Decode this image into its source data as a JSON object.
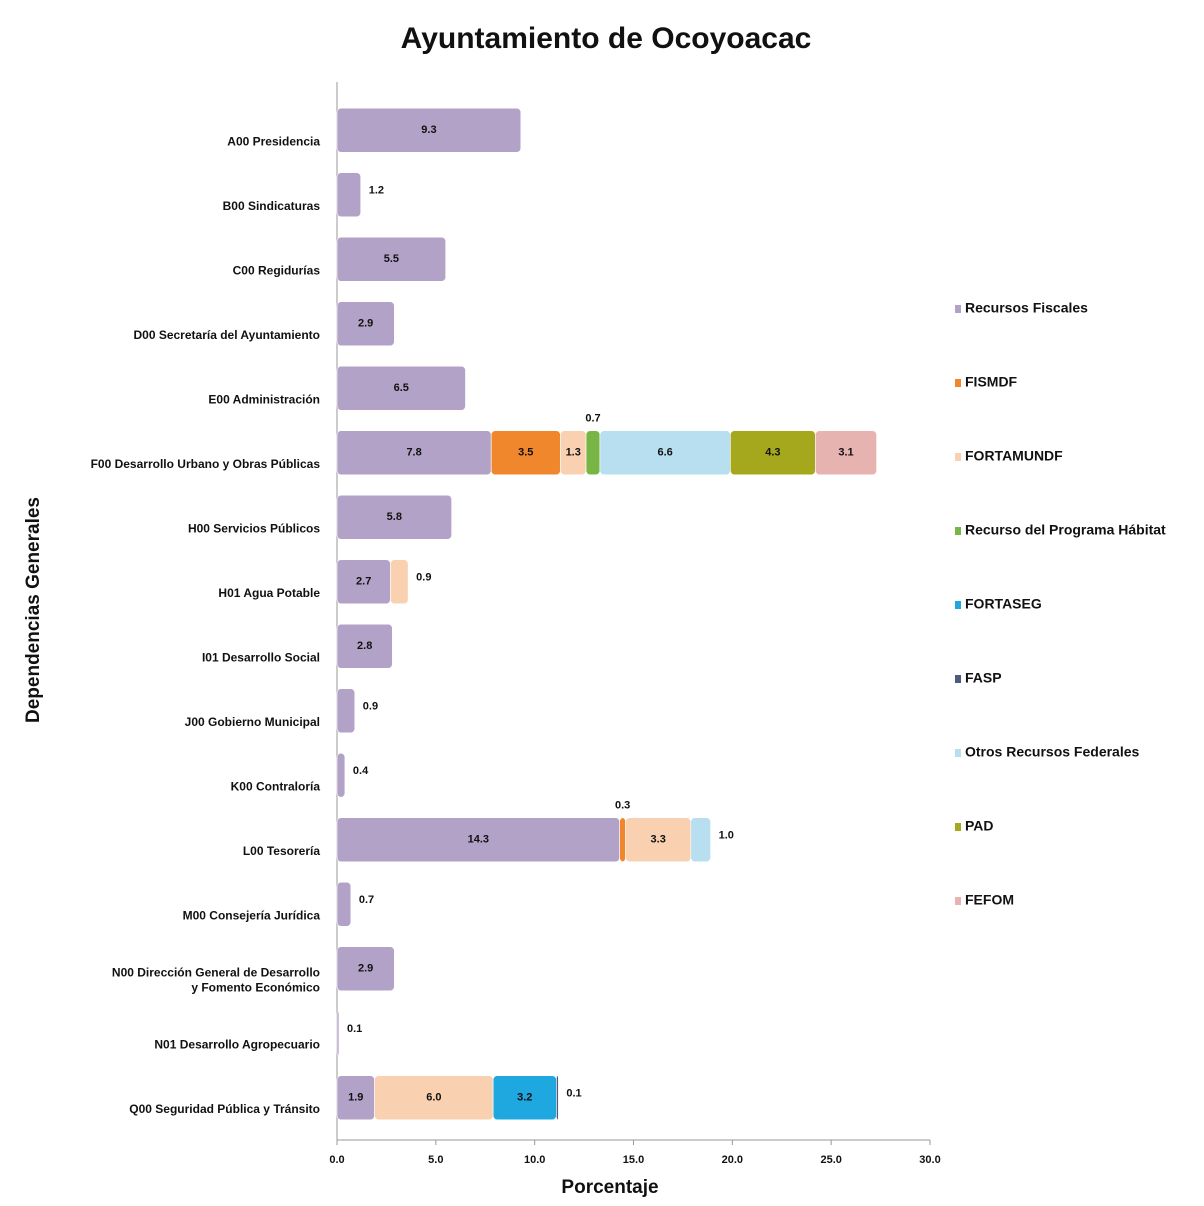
{
  "chart_data": {
    "type": "stacked-bar-horizontal",
    "title": "Ayuntamiento de Ocoyoacac",
    "x_label": "Porcentaje",
    "y_label": "Dependencias Generales",
    "categories": [
      "A00 Presidencia",
      "B00 Sindicaturas",
      "C00 Regidurías",
      "D00 Secretaría del Ayuntamiento",
      "E00 Administración",
      "F00 Desarrollo Urbano y Obras Públicas",
      "H00 Servicios Públicos",
      "H01 Agua Potable",
      "I01 Desarrollo Social",
      "J00 Gobierno Municipal",
      "K00 Contraloría",
      "L00 Tesorería",
      "M00 Consejería Jurídica",
      "N00 Dirección General de Desarrollo\ny Fomento Económico",
      "N01 Desarrollo Agropecuario",
      "Q00 Seguridad Pública y Tránsito"
    ],
    "series": [
      {
        "name": "Recursos Fiscales",
        "color": "#b3a2c7",
        "values": [
          9.3,
          1.2,
          5.5,
          2.9,
          6.5,
          7.8,
          5.8,
          2.7,
          2.8,
          0.9,
          0.4,
          14.3,
          0.7,
          2.9,
          0.1,
          1.9
        ]
      },
      {
        "name": "FISMDF",
        "color": "#f0872d",
        "values": [
          null,
          null,
          null,
          null,
          null,
          3.5,
          null,
          null,
          null,
          null,
          null,
          0.3,
          null,
          null,
          null,
          null
        ]
      },
      {
        "name": "FORTAMUNDF",
        "color": "#f9d1b0",
        "values": [
          null,
          null,
          null,
          null,
          null,
          1.3,
          null,
          0.9,
          null,
          null,
          null,
          3.3,
          null,
          null,
          null,
          6
        ],
        "value_labels": [
          null,
          null,
          null,
          null,
          null,
          "1.3",
          null,
          "0.9",
          null,
          null,
          null,
          "3.3",
          null,
          null,
          null,
          "6.0"
        ]
      },
      {
        "name": "Recurso del Programa Hábitat",
        "color": "#77b545",
        "values": [
          null,
          null,
          null,
          null,
          null,
          0.7,
          null,
          null,
          null,
          null,
          null,
          null,
          null,
          null,
          null,
          null
        ]
      },
      {
        "name": "FORTASEG",
        "color": "#1fa8e0",
        "values": [
          null,
          null,
          null,
          null,
          null,
          null,
          null,
          null,
          null,
          null,
          null,
          null,
          null,
          null,
          null,
          3.2
        ]
      },
      {
        "name": "FASP",
        "color": "#4b5d7a",
        "values": [
          null,
          null,
          null,
          null,
          null,
          null,
          null,
          null,
          null,
          null,
          null,
          null,
          null,
          null,
          null,
          0.1
        ]
      },
      {
        "name": "Otros Recursos Federales",
        "color": "#b7dff0",
        "values": [
          null,
          null,
          null,
          null,
          null,
          6.6,
          null,
          null,
          null,
          null,
          null,
          1,
          null,
          null,
          null,
          null
        ],
        "value_labels": [
          null,
          null,
          null,
          null,
          null,
          "6.6",
          null,
          null,
          null,
          null,
          null,
          "1.0",
          null,
          null,
          null,
          null
        ]
      },
      {
        "name": "PAD",
        "color": "#a5a81d",
        "values": [
          null,
          null,
          null,
          null,
          null,
          4.3,
          null,
          null,
          null,
          null,
          null,
          null,
          null,
          null,
          null,
          null
        ]
      },
      {
        "name": "FEFOM",
        "color": "#e6b3b1",
        "values": [
          null,
          null,
          null,
          null,
          null,
          3.1,
          null,
          null,
          null,
          null,
          null,
          null,
          null,
          null,
          null,
          null
        ]
      }
    ],
    "xlim": [
      0,
      30
    ],
    "xticks": [
      {
        "value": 0,
        "label": "0.0"
      },
      {
        "value": 5,
        "label": "5.0"
      },
      {
        "value": 10,
        "label": "10.0"
      },
      {
        "value": 15,
        "label": "15.0"
      },
      {
        "value": 20,
        "label": "20.0"
      },
      {
        "value": 25,
        "label": "25.0"
      },
      {
        "value": 30,
        "label": "30.0"
      }
    ],
    "legend": "right"
  }
}
